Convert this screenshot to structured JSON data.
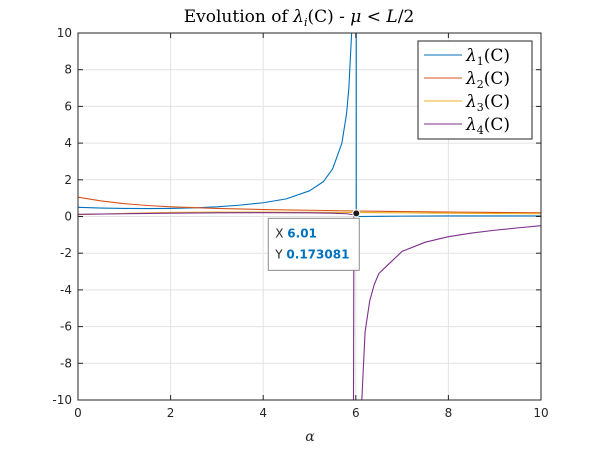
{
  "chart_data": {
    "type": "line",
    "title": "Evolution of λ_i(C) - μ < L/2",
    "title_parts": {
      "lead": "Evolution of ",
      "lambda": "λ",
      "sub": "i",
      "mid": "(C) - ",
      "mu": "μ",
      "rel": " < ",
      "L": "L",
      "tail": "/2"
    },
    "xlabel": "α",
    "ylabel": "",
    "xlim": [
      0,
      10
    ],
    "ylim": [
      -10,
      10
    ],
    "xticks": [
      0,
      2,
      4,
      6,
      8,
      10
    ],
    "yticks": [
      -10,
      -8,
      -6,
      -4,
      -2,
      0,
      2,
      4,
      6,
      8,
      10
    ],
    "grid": true,
    "legend_position": "top-right",
    "series": [
      {
        "name": "λ1(C)",
        "legend": {
          "lambda": "λ",
          "sub": "1",
          "arg": "(C)"
        },
        "color": "#0072BD",
        "segments": [
          [
            [
              0,
              0.5
            ],
            [
              0.5,
              0.46
            ],
            [
              1,
              0.44
            ],
            [
              1.5,
              0.43
            ],
            [
              2,
              0.44
            ],
            [
              2.5,
              0.47
            ],
            [
              3,
              0.53
            ],
            [
              3.5,
              0.62
            ],
            [
              4,
              0.75
            ],
            [
              4.5,
              0.96
            ],
            [
              5,
              1.4
            ],
            [
              5.3,
              1.9
            ],
            [
              5.5,
              2.6
            ],
            [
              5.7,
              4.0
            ],
            [
              5.8,
              5.6
            ],
            [
              5.85,
              7.0
            ],
            [
              5.9,
              9.5
            ],
            [
              5.91,
              10
            ]
          ],
          [
            [
              6.01,
              10
            ],
            [
              6.01,
              0.17
            ],
            [
              6.05,
              0.0
            ],
            [
              7,
              0.02
            ],
            [
              8,
              0.03
            ],
            [
              9,
              0.03
            ],
            [
              10,
              0.03
            ]
          ]
        ]
      },
      {
        "name": "λ2(C)",
        "legend": {
          "lambda": "λ",
          "sub": "2",
          "arg": "(C)"
        },
        "color": "#D95319",
        "segments": [
          [
            [
              0,
              1.05
            ],
            [
              0.5,
              0.85
            ],
            [
              1,
              0.7
            ],
            [
              1.5,
              0.6
            ],
            [
              2,
              0.53
            ],
            [
              3,
              0.44
            ],
            [
              4,
              0.38
            ],
            [
              5,
              0.34
            ],
            [
              6,
              0.3
            ],
            [
              7,
              0.27
            ],
            [
              8,
              0.24
            ],
            [
              9,
              0.22
            ],
            [
              10,
              0.2
            ]
          ]
        ]
      },
      {
        "name": "λ3(C)",
        "legend": {
          "lambda": "λ",
          "sub": "3",
          "arg": "(C)"
        },
        "color": "#EDB120",
        "segments": [
          [
            [
              0,
              0.1
            ],
            [
              1,
              0.17
            ],
            [
              2,
              0.22
            ],
            [
              3,
              0.24
            ],
            [
              4,
              0.24
            ],
            [
              5,
              0.23
            ],
            [
              6,
              0.22
            ],
            [
              7,
              0.2
            ],
            [
              8,
              0.18
            ],
            [
              9,
              0.16
            ],
            [
              10,
              0.15
            ]
          ]
        ]
      },
      {
        "name": "λ4(C)",
        "legend": {
          "lambda": "λ",
          "sub": "4",
          "arg": "(C)"
        },
        "color": "#7E2F8E",
        "segments": [
          [
            [
              0,
              0.12
            ],
            [
              1,
              0.15
            ],
            [
              2,
              0.18
            ],
            [
              3,
              0.2
            ],
            [
              4,
              0.21
            ],
            [
              5,
              0.2
            ],
            [
              5.5,
              0.18
            ],
            [
              5.8,
              0.15
            ],
            [
              5.95,
              0.1
            ]
          ],
          [
            [
              5.95,
              -10
            ],
            [
              5.96,
              0.1
            ]
          ],
          [
            [
              6.13,
              -10
            ],
            [
              6.2,
              -6.3
            ],
            [
              6.3,
              -4.6
            ],
            [
              6.4,
              -3.7
            ],
            [
              6.5,
              -3.1
            ],
            [
              7,
              -1.9
            ],
            [
              7.5,
              -1.4
            ],
            [
              8,
              -1.1
            ],
            [
              8.5,
              -0.9
            ],
            [
              9,
              -0.75
            ],
            [
              9.5,
              -0.62
            ],
            [
              10,
              -0.5
            ]
          ]
        ]
      }
    ],
    "datatip": {
      "x_label": "X",
      "x_value": "6.01",
      "y_label": "Y",
      "y_value": "0.173081",
      "x": 6.01,
      "y": 0.173081
    }
  }
}
